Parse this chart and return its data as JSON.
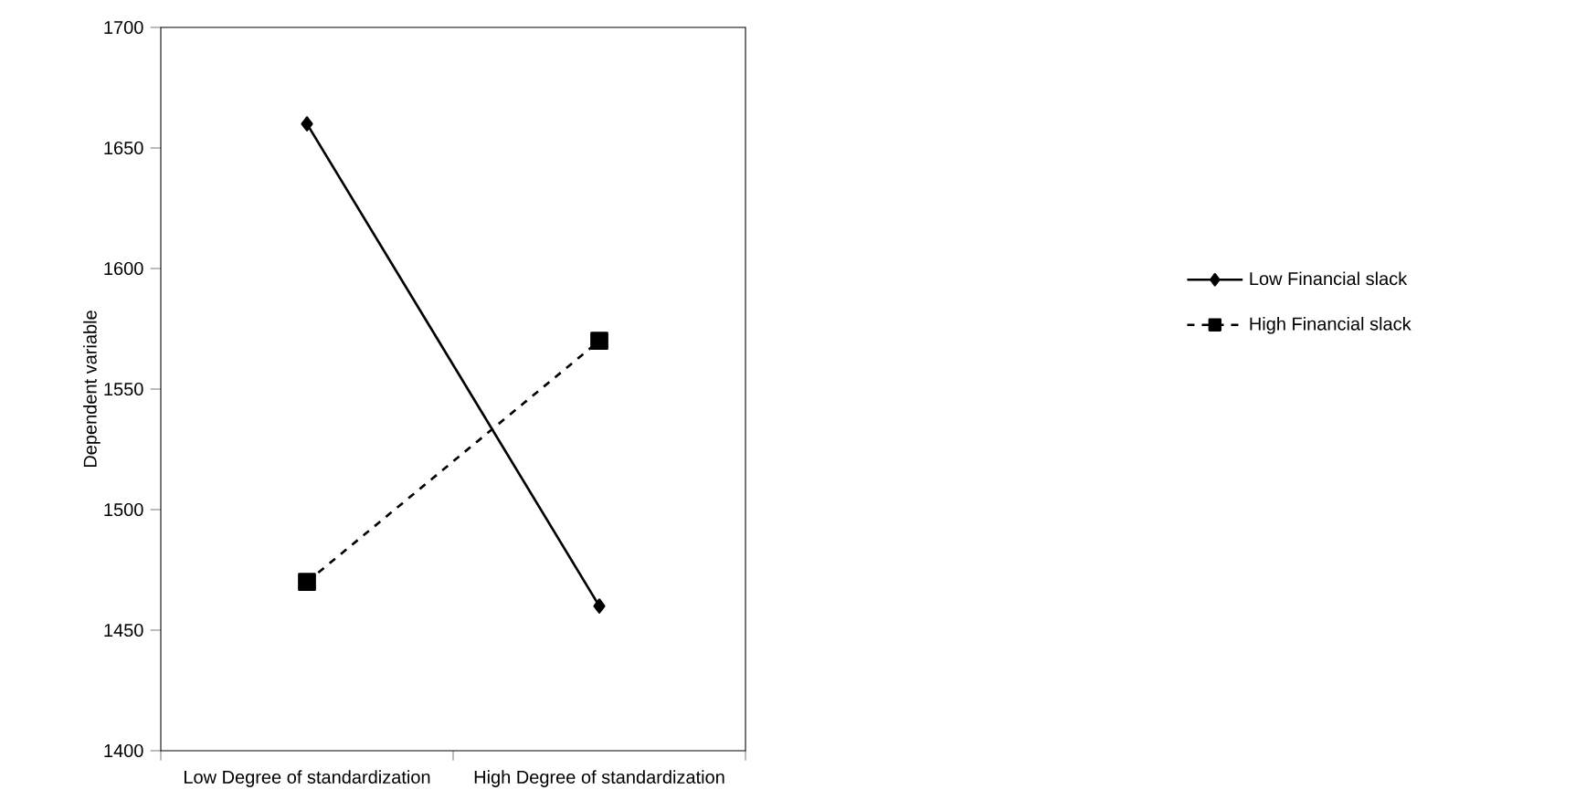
{
  "chart_data": {
    "type": "line",
    "ylabel": "Dependent variable",
    "categories": [
      "Low Degree of standardization",
      "High Degree of standardization"
    ],
    "series": [
      {
        "name": "Low Financial slack",
        "color": "#000000",
        "values": [
          1660,
          1460
        ],
        "marker": "diamond",
        "line_style": "solid"
      },
      {
        "name": "High Financial slack",
        "color": "#000000",
        "values": [
          1470,
          1570
        ],
        "marker": "square",
        "line_style": "dashed"
      }
    ],
    "ylim": [
      1400,
      1700
    ],
    "yticks": [
      1400,
      1450,
      1500,
      1550,
      1600,
      1650,
      1700
    ],
    "grid": false,
    "legend": "right"
  }
}
